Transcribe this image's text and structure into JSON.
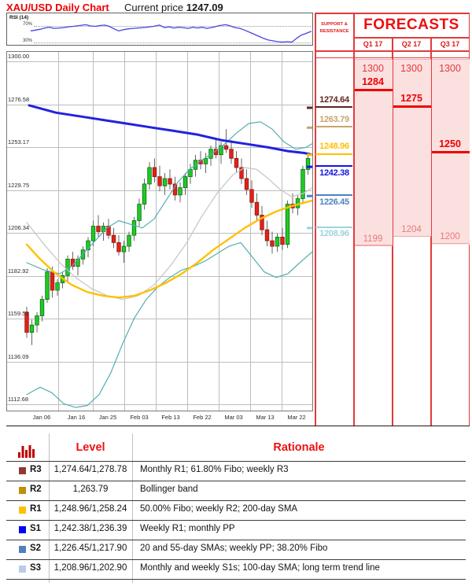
{
  "header": {
    "title": "XAU/USD Daily Chart",
    "current_price_label": "Current price",
    "current_price": "1247.09"
  },
  "support_resistance": {
    "header_line1": "SUPPORT &",
    "header_line2": "RESISTANCE",
    "levels": [
      {
        "value": "1274.64",
        "price": 1274.64,
        "color": "#632423",
        "position": "above"
      },
      {
        "value": "1263.79",
        "price": 1263.79,
        "color": "#c9a36b",
        "position": "above"
      },
      {
        "value": "1248.96",
        "price": 1248.96,
        "color": "#ffc000",
        "position": "above"
      },
      {
        "value": "1242.38",
        "price": 1242.38,
        "color": "#1414e8",
        "position": "below"
      },
      {
        "value": "1226.45",
        "price": 1226.45,
        "color": "#4f81bd",
        "position": "below"
      },
      {
        "value": "1208.96",
        "price": 1208.96,
        "color": "#9ed3de",
        "position": "below"
      }
    ]
  },
  "forecasts": {
    "title": "FORECASTS",
    "quarters": [
      {
        "label": "Q1 17",
        "high": "1300",
        "mid": "1284",
        "mid_price": 1284,
        "low": "1199",
        "low_price": 1199
      },
      {
        "label": "Q2 17",
        "high": "1300",
        "mid": "1275",
        "mid_price": 1275,
        "low": "1204",
        "low_price": 1204
      },
      {
        "label": "Q3 17",
        "high": "1300",
        "mid": "1250",
        "mid_price": 1250,
        "low": "1200",
        "low_price": 1200
      }
    ]
  },
  "chart_data": {
    "type": "candlestick",
    "title": "XAU/USD Daily Chart",
    "current_price": 1247.09,
    "y_axis": {
      "labels": [
        "1300.00",
        "1276.58",
        "1253.17",
        "1229.75",
        "1206.34",
        "1182.92",
        "1159.51",
        "1136.09",
        "1112.68"
      ],
      "prices": [
        1300.0,
        1276.58,
        1253.17,
        1229.75,
        1206.34,
        1182.92,
        1159.51,
        1136.09,
        1112.68
      ],
      "top_price": 1300.0,
      "bottom_price": 1112.68
    },
    "x_axis": [
      "Jan 06",
      "Jan 16",
      "Jan 25",
      "Feb 03",
      "Feb 13",
      "Feb 22",
      "Mar 03",
      "Mar 13",
      "Mar 22"
    ],
    "colors": {
      "up": "#1ecb24",
      "up_stroke": "#0b6b14",
      "down": "#e5201a",
      "down_stroke": "#8b1a10",
      "wick": "#666666",
      "sma200": "#2222dd",
      "sma55": "#ffc000",
      "sma_gray": "#c8c8c8",
      "bollinger": "#53aeb2",
      "rsi": "#4646e0"
    },
    "candles": [
      [
        1163,
        1166,
        1149,
        1152
      ],
      [
        1152,
        1159,
        1145,
        1156
      ],
      [
        1156,
        1163,
        1152,
        1161
      ],
      [
        1161,
        1172,
        1158,
        1170
      ],
      [
        1170,
        1187,
        1168,
        1185
      ],
      [
        1185,
        1188,
        1171,
        1175
      ],
      [
        1175,
        1181,
        1172,
        1179
      ],
      [
        1179,
        1185,
        1176,
        1183
      ],
      [
        1183,
        1194,
        1180,
        1192
      ],
      [
        1192,
        1196,
        1186,
        1188
      ],
      [
        1188,
        1194,
        1183,
        1192
      ],
      [
        1192,
        1199,
        1189,
        1197
      ],
      [
        1197,
        1204,
        1193,
        1202
      ],
      [
        1202,
        1213,
        1199,
        1210
      ],
      [
        1210,
        1216,
        1204,
        1207
      ],
      [
        1207,
        1212,
        1202,
        1210
      ],
      [
        1210,
        1214,
        1203,
        1205
      ],
      [
        1205,
        1209,
        1198,
        1201
      ],
      [
        1201,
        1205,
        1194,
        1196
      ],
      [
        1196,
        1202,
        1190,
        1199
      ],
      [
        1199,
        1207,
        1196,
        1205
      ],
      [
        1205,
        1215,
        1202,
        1213
      ],
      [
        1213,
        1225,
        1210,
        1222
      ],
      [
        1222,
        1236,
        1219,
        1233
      ],
      [
        1233,
        1245,
        1230,
        1242
      ],
      [
        1242,
        1247,
        1234,
        1237
      ],
      [
        1237,
        1243,
        1229,
        1232
      ],
      [
        1232,
        1239,
        1227,
        1236
      ],
      [
        1236,
        1241,
        1230,
        1233
      ],
      [
        1233,
        1237,
        1224,
        1227
      ],
      [
        1227,
        1234,
        1223,
        1231
      ],
      [
        1231,
        1239,
        1227,
        1237
      ],
      [
        1237,
        1244,
        1233,
        1241
      ],
      [
        1241,
        1249,
        1237,
        1246
      ],
      [
        1246,
        1251,
        1241,
        1244
      ],
      [
        1244,
        1250,
        1239,
        1247
      ],
      [
        1247,
        1254,
        1243,
        1252
      ],
      [
        1252,
        1258,
        1247,
        1249
      ],
      [
        1249,
        1256,
        1244,
        1254
      ],
      [
        1254,
        1263,
        1250,
        1252
      ],
      [
        1252,
        1257,
        1244,
        1247
      ],
      [
        1247,
        1251,
        1239,
        1242
      ],
      [
        1242,
        1247,
        1233,
        1236
      ],
      [
        1236,
        1241,
        1227,
        1230
      ],
      [
        1230,
        1235,
        1220,
        1223
      ],
      [
        1223,
        1228,
        1213,
        1216
      ],
      [
        1216,
        1221,
        1205,
        1208
      ],
      [
        1208,
        1213,
        1199,
        1202
      ],
      [
        1202,
        1207,
        1195,
        1199
      ],
      [
        1199,
        1206,
        1196,
        1204
      ],
      [
        1204,
        1209,
        1197,
        1200
      ],
      [
        1200,
        1224,
        1198,
        1222
      ],
      [
        1222,
        1228,
        1217,
        1220
      ],
      [
        1220,
        1227,
        1216,
        1225
      ],
      [
        1225,
        1243,
        1222,
        1241
      ],
      [
        1241,
        1250,
        1238,
        1247
      ]
    ],
    "overlays": {
      "sma200_blue": [
        [
          36,
          1276
        ],
        [
          70,
          1272
        ],
        [
          100,
          1270
        ],
        [
          130,
          1268
        ],
        [
          160,
          1266
        ],
        [
          190,
          1264
        ],
        [
          220,
          1262
        ],
        [
          250,
          1260
        ],
        [
          280,
          1257
        ],
        [
          310,
          1255
        ],
        [
          340,
          1253
        ],
        [
          365,
          1251
        ],
        [
          385,
          1250
        ],
        [
          396,
          1249
        ]
      ],
      "sma55_gold": [
        [
          33,
          1200
        ],
        [
          50,
          1192
        ],
        [
          70,
          1184
        ],
        [
          90,
          1178
        ],
        [
          110,
          1174
        ],
        [
          130,
          1172
        ],
        [
          150,
          1171
        ],
        [
          170,
          1172
        ],
        [
          190,
          1175
        ],
        [
          210,
          1179
        ],
        [
          230,
          1184
        ],
        [
          250,
          1190
        ],
        [
          270,
          1197
        ],
        [
          290,
          1203
        ],
        [
          310,
          1209
        ],
        [
          330,
          1214
        ],
        [
          350,
          1218
        ],
        [
          370,
          1221
        ],
        [
          396,
          1224
        ]
      ],
      "sma_gray": [
        [
          33,
          1212
        ],
        [
          55,
          1200
        ],
        [
          75,
          1190
        ],
        [
          95,
          1182
        ],
        [
          115,
          1176
        ],
        [
          135,
          1172
        ],
        [
          155,
          1170
        ],
        [
          175,
          1172
        ],
        [
          195,
          1178
        ],
        [
          215,
          1188
        ],
        [
          235,
          1200
        ],
        [
          255,
          1215
        ],
        [
          275,
          1228
        ],
        [
          295,
          1238
        ],
        [
          310,
          1242
        ],
        [
          325,
          1241
        ],
        [
          340,
          1236
        ],
        [
          355,
          1230
        ],
        [
          370,
          1226
        ],
        [
          385,
          1228
        ],
        [
          396,
          1231
        ]
      ],
      "bollinger_upper": [
        [
          33,
          1190
        ],
        [
          55,
          1186
        ],
        [
          75,
          1184
        ],
        [
          90,
          1188
        ],
        [
          105,
          1195
        ],
        [
          120,
          1202
        ],
        [
          135,
          1209
        ],
        [
          150,
          1213
        ],
        [
          165,
          1211
        ],
        [
          180,
          1209
        ],
        [
          195,
          1214
        ],
        [
          210,
          1224
        ],
        [
          225,
          1234
        ],
        [
          240,
          1241
        ],
        [
          255,
          1246
        ],
        [
          270,
          1250
        ],
        [
          285,
          1255
        ],
        [
          300,
          1261
        ],
        [
          315,
          1266
        ],
        [
          330,
          1267
        ],
        [
          345,
          1263
        ],
        [
          360,
          1256
        ],
        [
          375,
          1252
        ],
        [
          388,
          1253
        ],
        [
          396,
          1255
        ]
      ],
      "bollinger_lower": [
        [
          33,
          1118
        ],
        [
          50,
          1122
        ],
        [
          65,
          1119
        ],
        [
          80,
          1113
        ],
        [
          95,
          1111
        ],
        [
          110,
          1112
        ],
        [
          125,
          1118
        ],
        [
          140,
          1130
        ],
        [
          155,
          1146
        ],
        [
          170,
          1160
        ],
        [
          185,
          1170
        ],
        [
          200,
          1177
        ],
        [
          215,
          1182
        ],
        [
          230,
          1186
        ],
        [
          245,
          1188
        ],
        [
          260,
          1191
        ],
        [
          275,
          1195
        ],
        [
          290,
          1199
        ],
        [
          305,
          1201
        ],
        [
          320,
          1193
        ],
        [
          335,
          1185
        ],
        [
          350,
          1182
        ],
        [
          365,
          1184
        ],
        [
          380,
          1190
        ],
        [
          396,
          1196
        ]
      ]
    },
    "rsi": {
      "label": "RSI (14)",
      "upper_label": "70%",
      "lower_label": "30%",
      "values": [
        [
          38,
          58
        ],
        [
          44,
          60
        ],
        [
          50,
          62
        ],
        [
          56,
          65
        ],
        [
          62,
          67
        ],
        [
          68,
          64
        ],
        [
          74,
          65
        ],
        [
          80,
          66
        ],
        [
          86,
          68
        ],
        [
          92,
          69
        ],
        [
          100,
          71
        ],
        [
          108,
          73
        ],
        [
          114,
          70
        ],
        [
          120,
          69
        ],
        [
          126,
          71
        ],
        [
          132,
          72
        ],
        [
          138,
          69
        ],
        [
          144,
          63
        ],
        [
          150,
          58
        ],
        [
          156,
          61
        ],
        [
          162,
          63
        ],
        [
          168,
          64
        ],
        [
          174,
          65
        ],
        [
          180,
          66
        ],
        [
          186,
          67
        ],
        [
          194,
          69
        ],
        [
          202,
          72
        ],
        [
          208,
          66
        ],
        [
          214,
          68
        ],
        [
          220,
          65
        ],
        [
          226,
          67
        ],
        [
          232,
          66
        ],
        [
          238,
          64
        ],
        [
          244,
          67
        ],
        [
          250,
          65
        ],
        [
          256,
          67
        ],
        [
          262,
          64
        ],
        [
          270,
          67
        ],
        [
          278,
          71
        ],
        [
          286,
          73
        ],
        [
          292,
          70
        ],
        [
          298,
          66
        ],
        [
          304,
          64
        ],
        [
          310,
          60
        ],
        [
          316,
          55
        ],
        [
          322,
          50
        ],
        [
          328,
          45
        ],
        [
          334,
          40
        ],
        [
          340,
          36
        ],
        [
          346,
          34
        ],
        [
          352,
          32
        ],
        [
          358,
          31
        ],
        [
          364,
          32
        ],
        [
          370,
          31
        ],
        [
          376,
          40
        ],
        [
          382,
          48
        ],
        [
          388,
          52
        ],
        [
          392,
          55
        ],
        [
          395,
          57
        ]
      ]
    }
  },
  "table": {
    "headers": {
      "level": "Level",
      "rationale": "Rationale"
    },
    "rows": [
      {
        "id": "R3",
        "color": "#943634",
        "level": "1,274.64/1,278.78",
        "rationale": "Monthly R1; 61.80% Fibo; weekly R3"
      },
      {
        "id": "R2",
        "color": "#bf9000",
        "level": "1,263.79",
        "rationale": "Bollinger band"
      },
      {
        "id": "R1",
        "color": "#ffc000",
        "level": "1,248.96/1,258.24",
        "rationale": "50.00% Fibo; weekly R2; 200-day SMA"
      },
      {
        "id": "S1",
        "color": "#0000ff",
        "level": "1,242.38/1,236.39",
        "rationale": "Weekly R1; monthly PP"
      },
      {
        "id": "S2",
        "color": "#4f81bd",
        "level": "1,226.45/1,217.90",
        "rationale": "20 and 55-day SMAs; weekly PP; 38.20% Fibo"
      },
      {
        "id": "S3",
        "color": "#b8cce4",
        "level": "1,208.96/1,202.90",
        "rationale": "Monthly and weekly S1s; 100-day SMA; long term trend line"
      }
    ]
  }
}
